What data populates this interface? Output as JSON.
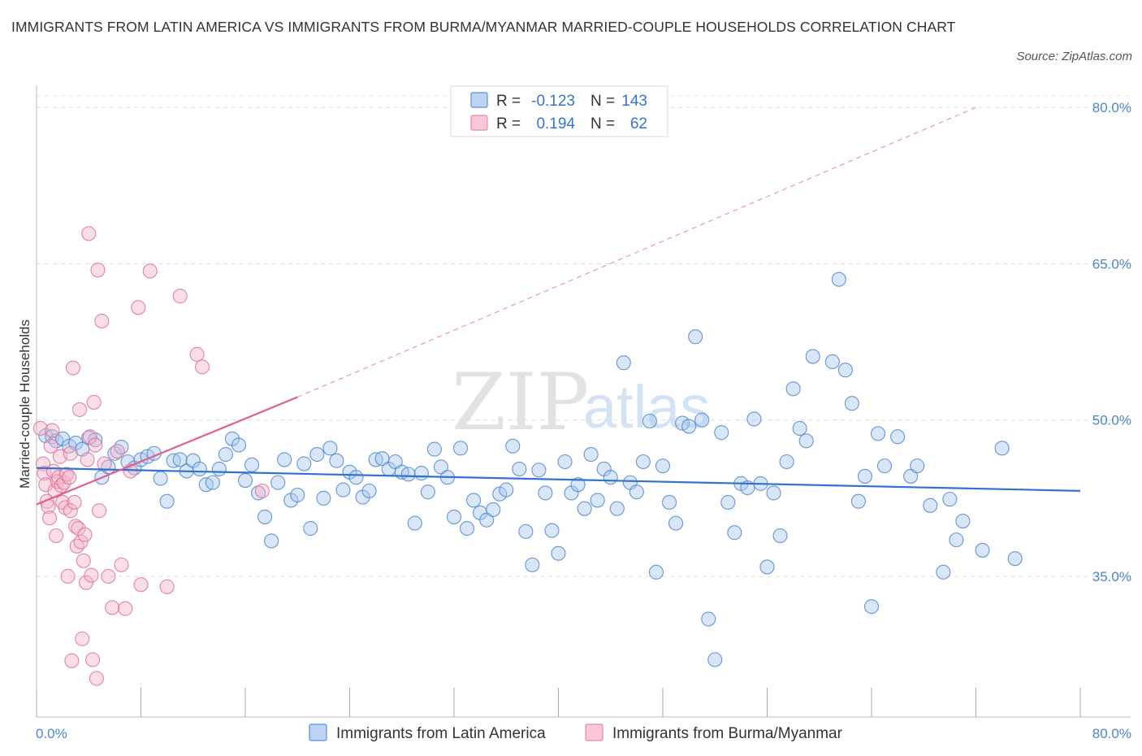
{
  "header": {
    "title": "IMMIGRANTS FROM LATIN AMERICA VS IMMIGRANTS FROM BURMA/MYANMAR MARRIED-COUPLE HOUSEHOLDS CORRELATION CHART",
    "source": "Source: ZipAtlas.com"
  },
  "watermark": {
    "zip": "ZIP",
    "atlas": "atlas"
  },
  "colors": {
    "blue": "#4a86d0",
    "blue_fill": "#a9c8ef",
    "blue_line": "#2f72d0",
    "pink": "#e07095",
    "pink_fill": "#f5b6c9",
    "pink_line": "#e0608a"
  },
  "legend": {
    "rows": [
      {
        "r_label": "R =",
        "r_value": "-0.123",
        "n_label": "N =",
        "n_value": "143"
      },
      {
        "r_label": "R =",
        "r_value": "0.194",
        "n_label": "N =",
        "n_value": "62"
      }
    ]
  },
  "chart_data": {
    "type": "scatter",
    "title": "IMMIGRANTS FROM LATIN AMERICA VS IMMIGRANTS FROM BURMA/MYANMAR MARRIED-COUPLE HOUSEHOLDS CORRELATION CHART",
    "xlabel": "",
    "ylabel": "Married-couple Households",
    "xlim": [
      0,
      80
    ],
    "ylim": [
      21.5,
      81.5
    ],
    "x_tick_labels": [
      "0.0%",
      "80.0%"
    ],
    "y_ticks": [
      35,
      50,
      65,
      80
    ],
    "y_tick_labels": [
      "35.0%",
      "50.0%",
      "65.0%",
      "80.0%"
    ],
    "grid": true,
    "series": [
      {
        "name": "Immigrants from Latin America",
        "R": -0.123,
        "N": 143,
        "trend": {
          "x0": 0,
          "y0": 45.4,
          "x1": 80,
          "y1": 43.2
        },
        "points": [
          [
            0.7,
            48.5
          ],
          [
            1.2,
            48.4
          ],
          [
            1.5,
            48.0
          ],
          [
            2.0,
            48.2
          ],
          [
            2.5,
            47.5
          ],
          [
            3.0,
            47.8
          ],
          [
            3.5,
            47.2
          ],
          [
            4.0,
            48.3
          ],
          [
            4.5,
            48.1
          ],
          [
            5.0,
            44.5
          ],
          [
            5.5,
            45.5
          ],
          [
            6.0,
            46.8
          ],
          [
            6.5,
            47.4
          ],
          [
            7.0,
            46.0
          ],
          [
            7.5,
            45.4
          ],
          [
            8.0,
            46.2
          ],
          [
            8.5,
            46.5
          ],
          [
            9.0,
            46.8
          ],
          [
            9.5,
            44.4
          ],
          [
            10.0,
            42.2
          ],
          [
            10.5,
            46.1
          ],
          [
            11.0,
            46.2
          ],
          [
            11.5,
            45.1
          ],
          [
            12.0,
            46.1
          ],
          [
            12.5,
            45.3
          ],
          [
            13.0,
            43.8
          ],
          [
            13.5,
            44.0
          ],
          [
            14.0,
            45.3
          ],
          [
            14.5,
            46.7
          ],
          [
            15.0,
            48.2
          ],
          [
            15.5,
            47.6
          ],
          [
            16.0,
            44.2
          ],
          [
            16.5,
            45.7
          ],
          [
            17.0,
            43.0
          ],
          [
            17.5,
            40.7
          ],
          [
            18.0,
            38.4
          ],
          [
            18.5,
            44.0
          ],
          [
            19.0,
            46.2
          ],
          [
            19.5,
            42.3
          ],
          [
            20.0,
            42.8
          ],
          [
            20.5,
            45.8
          ],
          [
            21.0,
            39.6
          ],
          [
            21.5,
            46.7
          ],
          [
            22.0,
            42.5
          ],
          [
            22.5,
            47.3
          ],
          [
            23.0,
            46.1
          ],
          [
            23.5,
            43.3
          ],
          [
            24.0,
            45.0
          ],
          [
            24.5,
            44.5
          ],
          [
            25.0,
            42.6
          ],
          [
            25.5,
            43.2
          ],
          [
            26.0,
            46.2
          ],
          [
            26.5,
            46.3
          ],
          [
            27.0,
            45.3
          ],
          [
            27.5,
            46.0
          ],
          [
            28.0,
            45.0
          ],
          [
            28.5,
            44.8
          ],
          [
            29.0,
            40.1
          ],
          [
            29.5,
            44.9
          ],
          [
            30.0,
            43.1
          ],
          [
            30.5,
            47.2
          ],
          [
            31.0,
            45.5
          ],
          [
            31.5,
            44.5
          ],
          [
            32.0,
            40.7
          ],
          [
            32.5,
            47.3
          ],
          [
            33.0,
            39.6
          ],
          [
            33.5,
            42.3
          ],
          [
            34.0,
            41.1
          ],
          [
            34.5,
            40.4
          ],
          [
            35.0,
            41.4
          ],
          [
            35.5,
            42.9
          ],
          [
            36.0,
            43.3
          ],
          [
            36.5,
            47.5
          ],
          [
            37.0,
            45.3
          ],
          [
            37.5,
            39.3
          ],
          [
            38.0,
            36.1
          ],
          [
            38.5,
            45.2
          ],
          [
            39.0,
            43.0
          ],
          [
            39.5,
            39.4
          ],
          [
            40.0,
            37.2
          ],
          [
            40.5,
            46.0
          ],
          [
            41.0,
            43.0
          ],
          [
            41.5,
            43.8
          ],
          [
            42.0,
            41.5
          ],
          [
            42.5,
            46.7
          ],
          [
            43.0,
            42.3
          ],
          [
            43.5,
            45.3
          ],
          [
            44.0,
            44.5
          ],
          [
            44.5,
            41.5
          ],
          [
            45.0,
            55.5
          ],
          [
            45.5,
            44.0
          ],
          [
            46.0,
            43.1
          ],
          [
            46.5,
            46.0
          ],
          [
            47.0,
            49.9
          ],
          [
            47.5,
            35.4
          ],
          [
            48.0,
            45.6
          ],
          [
            48.5,
            42.1
          ],
          [
            49.0,
            40.1
          ],
          [
            49.5,
            49.7
          ],
          [
            50.0,
            49.4
          ],
          [
            50.5,
            58.0
          ],
          [
            51.0,
            50.0
          ],
          [
            51.5,
            30.9
          ],
          [
            52.0,
            27.0
          ],
          [
            52.5,
            48.8
          ],
          [
            53.0,
            42.1
          ],
          [
            53.5,
            39.2
          ],
          [
            54.0,
            43.9
          ],
          [
            54.5,
            43.5
          ],
          [
            55.0,
            50.1
          ],
          [
            55.5,
            43.9
          ],
          [
            56.0,
            35.9
          ],
          [
            56.5,
            43.0
          ],
          [
            57.0,
            38.9
          ],
          [
            57.5,
            46.0
          ],
          [
            58.0,
            53.0
          ],
          [
            58.5,
            49.2
          ],
          [
            59.0,
            48.0
          ],
          [
            59.5,
            56.1
          ],
          [
            61.0,
            55.6
          ],
          [
            61.5,
            63.5
          ],
          [
            62.0,
            54.8
          ],
          [
            62.5,
            51.6
          ],
          [
            63.0,
            42.2
          ],
          [
            63.5,
            44.6
          ],
          [
            64.0,
            32.1
          ],
          [
            64.5,
            48.7
          ],
          [
            65.0,
            45.6
          ],
          [
            66.0,
            48.4
          ],
          [
            67.0,
            44.6
          ],
          [
            67.5,
            45.6
          ],
          [
            68.5,
            41.8
          ],
          [
            69.5,
            35.4
          ],
          [
            70.0,
            42.4
          ],
          [
            70.5,
            38.5
          ],
          [
            71.0,
            40.3
          ],
          [
            72.5,
            37.5
          ],
          [
            74.0,
            47.3
          ],
          [
            75.0,
            36.7
          ]
        ]
      },
      {
        "name": "Immigrants from Burma/Myanmar",
        "R": 0.194,
        "N": 62,
        "trend": {
          "x0": 0,
          "y0": 41.9,
          "x1": 20,
          "y1": 52.2,
          "x_ext": 72,
          "y_ext": 80
        },
        "points": [
          [
            0.3,
            49.2
          ],
          [
            0.5,
            45.8
          ],
          [
            0.6,
            44.9
          ],
          [
            0.7,
            43.8
          ],
          [
            0.8,
            42.2
          ],
          [
            0.9,
            41.7
          ],
          [
            1.0,
            40.6
          ],
          [
            1.1,
            47.5
          ],
          [
            1.3,
            45.1
          ],
          [
            1.4,
            43.2
          ],
          [
            1.5,
            38.9
          ],
          [
            1.6,
            44.1
          ],
          [
            1.7,
            44.5
          ],
          [
            1.8,
            46.5
          ],
          [
            1.9,
            43.7
          ],
          [
            2.0,
            42.1
          ],
          [
            2.1,
            44.0
          ],
          [
            2.2,
            41.6
          ],
          [
            2.3,
            44.8
          ],
          [
            2.4,
            35.0
          ],
          [
            2.5,
            44.5
          ],
          [
            2.6,
            41.3
          ],
          [
            2.7,
            26.9
          ],
          [
            2.8,
            55.0
          ],
          [
            2.9,
            42.1
          ],
          [
            3.0,
            39.8
          ],
          [
            3.1,
            37.9
          ],
          [
            3.2,
            39.6
          ],
          [
            3.3,
            51.0
          ],
          [
            3.4,
            38.3
          ],
          [
            3.5,
            29.0
          ],
          [
            3.6,
            36.5
          ],
          [
            3.7,
            39.0
          ],
          [
            3.8,
            34.4
          ],
          [
            3.9,
            46.2
          ],
          [
            4.0,
            67.9
          ],
          [
            4.1,
            48.4
          ],
          [
            4.2,
            35.1
          ],
          [
            4.3,
            27.0
          ],
          [
            4.4,
            51.7
          ],
          [
            4.5,
            47.6
          ],
          [
            4.6,
            25.2
          ],
          [
            4.7,
            64.4
          ],
          [
            4.8,
            41.3
          ],
          [
            5.0,
            59.5
          ],
          [
            5.2,
            45.8
          ],
          [
            5.5,
            35.0
          ],
          [
            5.8,
            32.0
          ],
          [
            6.2,
            47.0
          ],
          [
            6.5,
            36.1
          ],
          [
            6.8,
            31.9
          ],
          [
            7.2,
            45.1
          ],
          [
            7.8,
            60.8
          ],
          [
            8.0,
            34.2
          ],
          [
            8.7,
            64.3
          ],
          [
            10.0,
            34.0
          ],
          [
            11.0,
            61.9
          ],
          [
            12.3,
            56.3
          ],
          [
            12.7,
            55.1
          ],
          [
            17.3,
            43.2
          ],
          [
            1.2,
            49.0
          ],
          [
            2.6,
            46.8
          ]
        ]
      }
    ]
  },
  "bottom_legend": [
    {
      "label": "Immigrants from Latin America"
    },
    {
      "label": "Immigrants from Burma/Myanmar"
    }
  ]
}
